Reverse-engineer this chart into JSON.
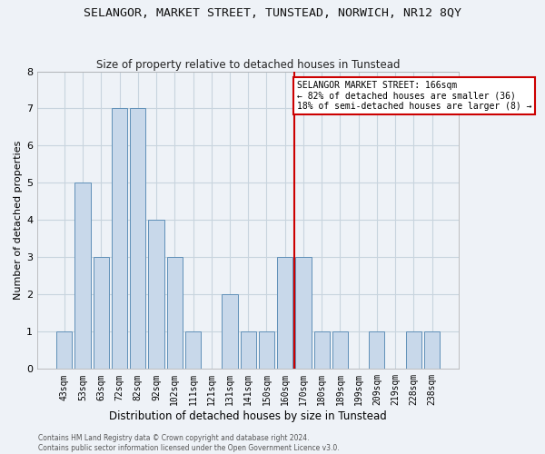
{
  "title": "SELANGOR, MARKET STREET, TUNSTEAD, NORWICH, NR12 8QY",
  "subtitle": "Size of property relative to detached houses in Tunstead",
  "xlabel": "Distribution of detached houses by size in Tunstead",
  "ylabel": "Number of detached properties",
  "footer1": "Contains HM Land Registry data © Crown copyright and database right 2024.",
  "footer2": "Contains public sector information licensed under the Open Government Licence v3.0.",
  "categories": [
    "43sqm",
    "53sqm",
    "63sqm",
    "72sqm",
    "82sqm",
    "92sqm",
    "102sqm",
    "111sqm",
    "121sqm",
    "131sqm",
    "141sqm",
    "150sqm",
    "160sqm",
    "170sqm",
    "180sqm",
    "189sqm",
    "199sqm",
    "209sqm",
    "219sqm",
    "228sqm",
    "238sqm"
  ],
  "values": [
    1,
    5,
    3,
    7,
    7,
    4,
    3,
    1,
    0,
    2,
    1,
    1,
    3,
    3,
    1,
    1,
    0,
    1,
    0,
    1,
    1
  ],
  "bar_color": "#c8d8ea",
  "bar_edgecolor": "#6090b8",
  "grid_color": "#c8d4de",
  "background_color": "#eef2f7",
  "marker_line_color": "#cc0000",
  "marker_box_edgecolor": "#cc0000",
  "annotation_line1": "SELANGOR MARKET STREET: 166sqm",
  "annotation_line2": "← 82% of detached houses are smaller (36)",
  "annotation_line3": "18% of semi-detached houses are larger (8) →",
  "ylim": [
    0,
    8
  ],
  "yticks": [
    0,
    1,
    2,
    3,
    4,
    5,
    6,
    7,
    8
  ],
  "marker_bin_index": 12,
  "title_fontsize": 9.5,
  "subtitle_fontsize": 8.5,
  "xlabel_fontsize": 8.5,
  "ylabel_fontsize": 8,
  "tick_fontsize": 7,
  "annotation_fontsize": 7,
  "footer_fontsize": 5.5
}
